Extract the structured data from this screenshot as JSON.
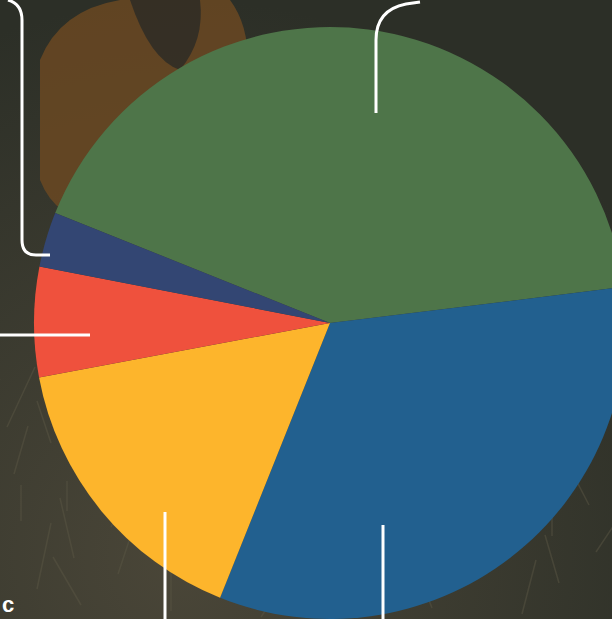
{
  "chart_data": {
    "type": "pie",
    "values": [
      42,
      33,
      16,
      6,
      3
    ],
    "colors": [
      "#4e7549",
      "#22608f",
      "#fdb52c",
      "#ef513d",
      "#334673"
    ],
    "annotations": [
      "c"
    ]
  }
}
